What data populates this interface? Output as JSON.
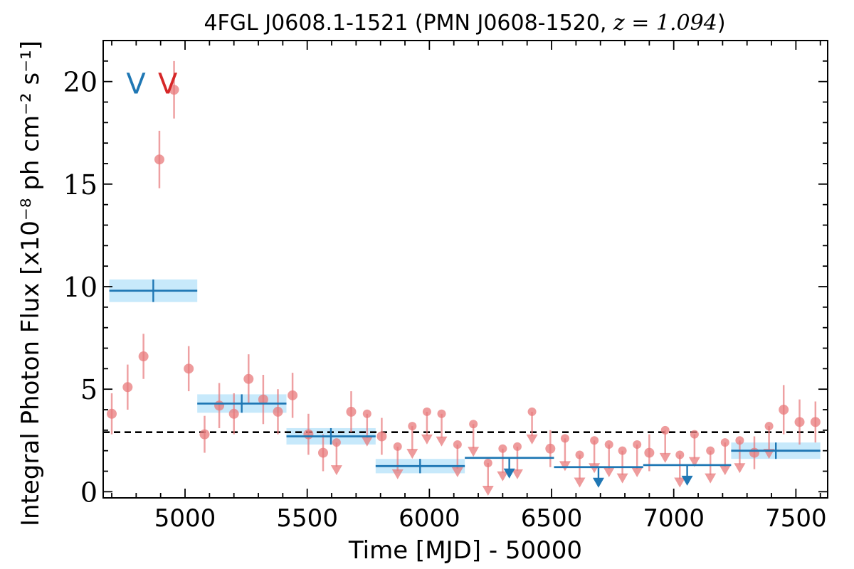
{
  "chart_data": {
    "type": "scatter",
    "title": "4FGL J0608.1-1521 (PMN J0608-1520, ",
    "title_math": "z = 1.094",
    "title_end": ")",
    "xlabel": "Time [MJD] - 50000",
    "ylabel": "Integral Photon Flux [x10⁻⁸ ph cm⁻² s⁻¹]",
    "xlim": [
      4665,
      7630
    ],
    "ylim": [
      -0.3,
      22
    ],
    "xticks": [
      5000,
      5500,
      6000,
      6500,
      7000,
      7500
    ],
    "yticks": [
      0,
      5,
      10,
      15,
      20
    ],
    "hline": 2.9,
    "colors": {
      "fine": "#e8797b",
      "coarse": "#1f77b4",
      "coarse_band": "#c7e9fb",
      "v_blue": "#1f77b4",
      "v_red": "#d62728",
      "hline": "#000000"
    },
    "v_markers": [
      {
        "label": "V",
        "x": 4800,
        "y": 19.9,
        "color": "v_blue"
      },
      {
        "label": "V",
        "x": 4930,
        "y": 19.9,
        "color": "v_red"
      }
    ],
    "fine_points": [
      {
        "x": 4700,
        "y": 3.8,
        "err": 1.0
      },
      {
        "x": 4765,
        "y": 5.1,
        "err": 1.1
      },
      {
        "x": 4830,
        "y": 6.6,
        "err": 1.1
      },
      {
        "x": 4895,
        "y": 16.2,
        "err": 1.4
      },
      {
        "x": 4955,
        "y": 19.6,
        "err": 1.4
      },
      {
        "x": 5015,
        "y": 6.0,
        "err": 1.1
      },
      {
        "x": 5080,
        "y": 2.8,
        "err": 0.9
      },
      {
        "x": 5140,
        "y": 4.2,
        "err": 1.1
      },
      {
        "x": 5200,
        "y": 3.8,
        "err": 1.0
      },
      {
        "x": 5260,
        "y": 5.5,
        "err": 1.2
      },
      {
        "x": 5320,
        "y": 4.5,
        "err": 1.2
      },
      {
        "x": 5380,
        "y": 3.9,
        "err": 1.1
      },
      {
        "x": 5440,
        "y": 4.7,
        "err": 1.1
      },
      {
        "x": 5505,
        "y": 2.8,
        "err": 1.0
      },
      {
        "x": 5565,
        "y": 1.9,
        "err": 0.9
      },
      {
        "x": 5680,
        "y": 3.9,
        "err": 1.0
      },
      {
        "x": 5805,
        "y": 2.7,
        "err": 0.9
      },
      {
        "x": 6495,
        "y": 2.1,
        "err": 0.9
      },
      {
        "x": 6900,
        "y": 1.9,
        "err": 0.9
      },
      {
        "x": 7330,
        "y": 1.9,
        "err": 0.8
      },
      {
        "x": 7450,
        "y": 4.0,
        "err": 1.2
      },
      {
        "x": 7515,
        "y": 3.4,
        "err": 1.1
      },
      {
        "x": 7580,
        "y": 3.4,
        "err": 1.0
      }
    ],
    "fine_upper_limits": [
      {
        "x": 5620,
        "y": 2.4
      },
      {
        "x": 5745,
        "y": 3.8
      },
      {
        "x": 5870,
        "y": 2.2
      },
      {
        "x": 5930,
        "y": 3.2
      },
      {
        "x": 5990,
        "y": 3.9
      },
      {
        "x": 6050,
        "y": 3.8
      },
      {
        "x": 6115,
        "y": 2.3
      },
      {
        "x": 6180,
        "y": 3.3
      },
      {
        "x": 6240,
        "y": 1.4
      },
      {
        "x": 6300,
        "y": 2.1
      },
      {
        "x": 6360,
        "y": 2.2
      },
      {
        "x": 6420,
        "y": 3.9
      },
      {
        "x": 6555,
        "y": 2.6
      },
      {
        "x": 6615,
        "y": 1.8
      },
      {
        "x": 6675,
        "y": 2.5
      },
      {
        "x": 6735,
        "y": 2.3
      },
      {
        "x": 6790,
        "y": 2.0
      },
      {
        "x": 6850,
        "y": 2.3
      },
      {
        "x": 6965,
        "y": 3.0
      },
      {
        "x": 7025,
        "y": 1.8
      },
      {
        "x": 7085,
        "y": 2.8
      },
      {
        "x": 7150,
        "y": 2.0
      },
      {
        "x": 7210,
        "y": 2.4
      },
      {
        "x": 7270,
        "y": 2.5
      },
      {
        "x": 7390,
        "y": 3.2
      }
    ],
    "coarse_bins": [
      {
        "x0": 4690,
        "x1": 5050,
        "xc": 4870,
        "y": 9.8,
        "err": 0.55
      },
      {
        "x0": 5050,
        "x1": 5415,
        "xc": 5232,
        "y": 4.3,
        "err": 0.45
      },
      {
        "x0": 5415,
        "x1": 5780,
        "xc": 5597,
        "y": 2.7,
        "err": 0.4
      },
      {
        "x0": 5780,
        "x1": 6145,
        "xc": 5962,
        "y": 1.25,
        "err": 0.35
      },
      {
        "x0": 7235,
        "x1": 7600,
        "xc": 7418,
        "y": 2.0,
        "err": 0.4
      }
    ],
    "coarse_upper_limits": [
      {
        "x0": 6145,
        "x1": 6510,
        "xc": 6327,
        "y": 1.65
      },
      {
        "x0": 6510,
        "x1": 6875,
        "xc": 6692,
        "y": 1.2
      },
      {
        "x0": 6875,
        "x1": 7235,
        "xc": 7055,
        "y": 1.3
      }
    ]
  }
}
